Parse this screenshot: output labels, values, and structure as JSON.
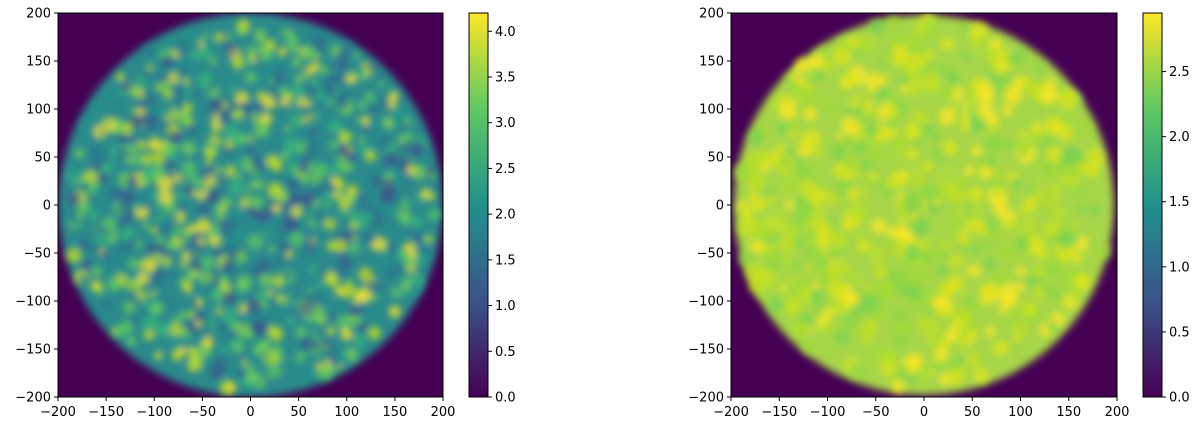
{
  "colormap": [
    "#440154",
    "#3b528b",
    "#21918c",
    "#5ec962",
    "#fde725"
  ],
  "chart_data": [
    {
      "type": "heatmap",
      "title": "",
      "xlabel": "",
      "ylabel": "",
      "xlim": [
        -200,
        200
      ],
      "ylim": [
        -200,
        200
      ],
      "xticks": [
        -200,
        -150,
        -100,
        -50,
        0,
        50,
        100,
        150,
        200
      ],
      "yticks": [
        -200,
        -150,
        -100,
        -50,
        0,
        50,
        100,
        150,
        200
      ],
      "xtick_labels": [
        "−200",
        "−150",
        "−100",
        "−50",
        "0",
        "50",
        "100",
        "150",
        "200"
      ],
      "ytick_labels": [
        "−200",
        "−150",
        "−100",
        "−50",
        "0",
        "50",
        "100",
        "150",
        "200"
      ],
      "disk_radius": 200,
      "disk_mean_value": 2.5,
      "background_value": 0.0,
      "colorbar": {
        "range": [
          0.0,
          4.2
        ],
        "ticks": [
          0.0,
          0.5,
          1.0,
          1.5,
          2.0,
          2.5,
          3.0,
          3.5,
          4.0
        ],
        "tick_labels": [
          "0.0",
          "0.5",
          "1.0",
          "1.5",
          "2.0",
          "2.5",
          "3.0",
          "3.5",
          "4.0"
        ]
      }
    },
    {
      "type": "heatmap",
      "title": "",
      "xlabel": "",
      "ylabel": "",
      "xlim": [
        -200,
        200
      ],
      "ylim": [
        -200,
        200
      ],
      "xticks": [
        -200,
        -150,
        -100,
        -50,
        0,
        50,
        100,
        150,
        200
      ],
      "yticks": [
        -200,
        -150,
        -100,
        -50,
        0,
        50,
        100,
        150,
        200
      ],
      "xtick_labels": [
        "−200",
        "−150",
        "−100",
        "−50",
        "0",
        "50",
        "100",
        "150",
        "200"
      ],
      "ytick_labels": [
        "−200",
        "−150",
        "−100",
        "−50",
        "0",
        "50",
        "100",
        "150",
        "200"
      ],
      "disk_radius": 200,
      "disk_mean_value": 2.5,
      "background_value": 0.0,
      "colorbar": {
        "range": [
          0.0,
          2.95
        ],
        "ticks": [
          0.0,
          0.5,
          1.0,
          1.5,
          2.0,
          2.5
        ],
        "tick_labels": [
          "0.0",
          "0.5",
          "1.0",
          "1.5",
          "2.0",
          "2.5"
        ]
      }
    }
  ]
}
